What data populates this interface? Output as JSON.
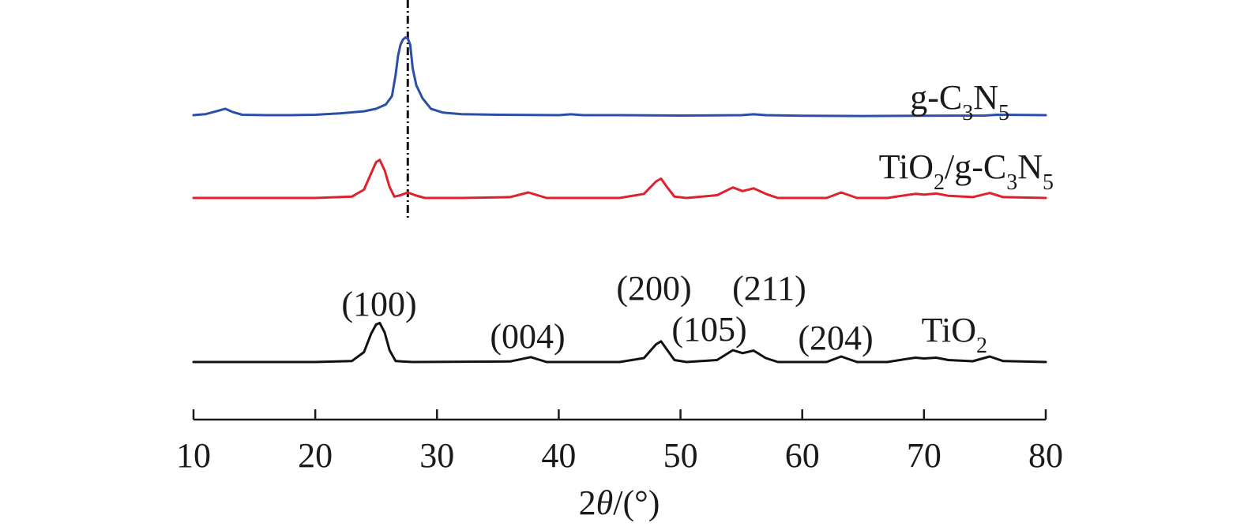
{
  "chart_data": {
    "type": "line",
    "xlabel_prefix": "2",
    "xlabel_theta": "θ",
    "xlabel_suffix": "/(°)",
    "xlim": [
      10,
      80
    ],
    "x_ticks": [
      10,
      20,
      30,
      40,
      50,
      60,
      70,
      80
    ],
    "reference_line_x": 27.6,
    "series": [
      {
        "name_parts": [
          {
            "text": "g-C",
            "sub": false
          },
          {
            "text": "3",
            "sub": true
          },
          {
            "text": "N",
            "sub": false
          },
          {
            "text": "5",
            "sub": true
          }
        ],
        "color": "#2b4ea8",
        "x": [
          10,
          11,
          12,
          12.6,
          13.2,
          14,
          16,
          18,
          20,
          22,
          24,
          25,
          25.8,
          26.3,
          26.6,
          26.8,
          27,
          27.2,
          27.4,
          27.6,
          27.8,
          28,
          28.3,
          28.8,
          29.5,
          30.5,
          32,
          35,
          40,
          41,
          42,
          45,
          50,
          55,
          56,
          57,
          60,
          65,
          70,
          75,
          76,
          80
        ],
        "y": [
          0.0,
          0.05,
          0.2,
          0.3,
          0.15,
          0.02,
          0.0,
          0.0,
          0.02,
          0.08,
          0.18,
          0.3,
          0.5,
          0.9,
          1.9,
          2.8,
          3.3,
          3.55,
          3.65,
          3.6,
          3.3,
          2.2,
          1.4,
          0.8,
          0.3,
          0.12,
          0.05,
          0.02,
          0.0,
          0.04,
          0.0,
          0.0,
          -0.02,
          0.0,
          0.04,
          0.0,
          -0.03,
          -0.04,
          -0.03,
          -0.02,
          0.02,
          0.0
        ]
      },
      {
        "name_parts": [
          {
            "text": "TiO",
            "sub": false
          },
          {
            "text": "2",
            "sub": true
          },
          {
            "text": "/g-C",
            "sub": false
          },
          {
            "text": "3",
            "sub": true
          },
          {
            "text": "N",
            "sub": false
          },
          {
            "text": "5",
            "sub": true
          }
        ],
        "color": "#e0202c",
        "x": [
          10,
          20,
          23,
          24,
          24.6,
          25,
          25.3,
          25.7,
          26.1,
          26.5,
          27,
          27.6,
          28.2,
          29,
          32,
          36,
          37.5,
          39,
          45,
          47,
          48,
          48.4,
          48.8,
          49.5,
          50.5,
          53,
          54.3,
          55.1,
          56,
          57,
          58,
          62,
          63.2,
          64.5,
          67,
          68.5,
          69.3,
          70,
          71,
          72,
          74,
          75.4,
          76.5,
          80
        ],
        "y": [
          0.0,
          0.0,
          0.05,
          0.3,
          0.9,
          1.3,
          1.38,
          1.0,
          0.4,
          0.05,
          0.1,
          0.2,
          0.1,
          0.0,
          0.0,
          0.03,
          0.2,
          0.0,
          0.0,
          0.15,
          0.6,
          0.7,
          0.45,
          0.05,
          0.0,
          0.1,
          0.38,
          0.25,
          0.35,
          0.15,
          0.0,
          0.0,
          0.2,
          0.0,
          0.0,
          0.1,
          0.15,
          0.12,
          0.16,
          0.08,
          0.03,
          0.18,
          0.03,
          0.0
        ]
      },
      {
        "name_parts": [
          {
            "text": "TiO",
            "sub": false
          },
          {
            "text": "2",
            "sub": true
          }
        ],
        "color": "#111111",
        "x": [
          10,
          20,
          23,
          24,
          24.6,
          25,
          25.3,
          25.7,
          26.1,
          26.6,
          28,
          36,
          37.7,
          39,
          45,
          47,
          48,
          48.4,
          48.8,
          49.5,
          50.5,
          53,
          54.3,
          55.1,
          56,
          57,
          58,
          62,
          63.2,
          64.5,
          67,
          68.5,
          69.3,
          70,
          71,
          72,
          74,
          75.4,
          76.5,
          80
        ],
        "y": [
          0.0,
          0.0,
          0.05,
          0.5,
          1.45,
          1.9,
          1.98,
          1.5,
          0.6,
          0.05,
          0.0,
          0.03,
          0.25,
          0.0,
          0.0,
          0.2,
          0.9,
          1.05,
          0.7,
          0.1,
          0.0,
          0.1,
          0.6,
          0.45,
          0.58,
          0.2,
          0.0,
          0.0,
          0.28,
          0.0,
          0.0,
          0.15,
          0.22,
          0.18,
          0.22,
          0.1,
          0.04,
          0.28,
          0.05,
          0.0
        ]
      }
    ],
    "annotations": [
      "(100)",
      "(004)",
      "(200)",
      "(105)",
      "(211)",
      "(204)"
    ]
  }
}
